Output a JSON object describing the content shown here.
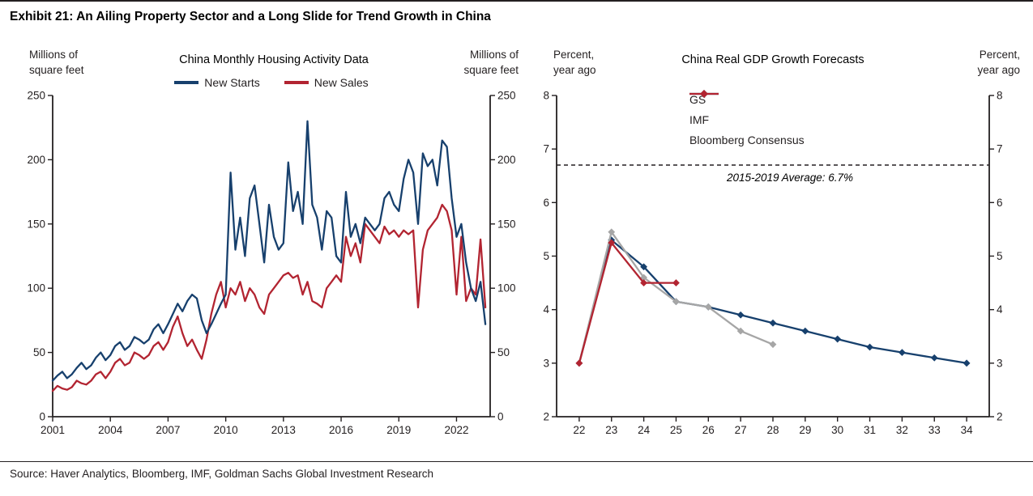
{
  "title": "Exhibit 21: An Ailing Property Sector and a Long Slide for Trend Growth in China",
  "source": "Source: Haver Analytics, Bloomberg, IMF, Goldman Sachs Global Investment Research",
  "colors": {
    "navy": "#17406d",
    "red": "#b22431",
    "gray": "#a6a6a6",
    "ink": "#231f20"
  },
  "chart_data": [
    {
      "type": "line",
      "title": "China Monthly Housing Activity Data",
      "ylabel_left": "Millions of square feet",
      "ylabel_right": "Millions of square feet",
      "ylim": [
        0,
        250
      ],
      "yticks": [
        0,
        50,
        100,
        150,
        200,
        250
      ],
      "xlim": [
        2001,
        2023.75
      ],
      "xticks": [
        2001,
        2004,
        2007,
        2010,
        2013,
        2016,
        2019,
        2022
      ],
      "legend_position": "top",
      "series": [
        {
          "name": "New Sales",
          "color": "#b22431",
          "x_start": 2001,
          "x_step": 0.25,
          "values": [
            20,
            24,
            22,
            21,
            23,
            28,
            26,
            25,
            28,
            33,
            35,
            30,
            35,
            42,
            45,
            40,
            42,
            50,
            48,
            45,
            48,
            55,
            58,
            52,
            58,
            70,
            78,
            65,
            55,
            60,
            52,
            45,
            60,
            80,
            95,
            105,
            85,
            100,
            95,
            105,
            90,
            100,
            95,
            85,
            80,
            95,
            100,
            105,
            110,
            112,
            108,
            110,
            95,
            105,
            90,
            88,
            85,
            100,
            105,
            110,
            105,
            140,
            125,
            135,
            120,
            150,
            145,
            140,
            135,
            148,
            142,
            145,
            140,
            145,
            142,
            145,
            85,
            130,
            145,
            150,
            155,
            165,
            160,
            145,
            95,
            140,
            90,
            100,
            95,
            138,
            85
          ]
        },
        {
          "name": "New Starts",
          "color": "#17406d",
          "x_start": 2001,
          "x_step": 0.25,
          "values": [
            28,
            32,
            35,
            30,
            33,
            38,
            42,
            37,
            40,
            46,
            50,
            44,
            48,
            55,
            58,
            52,
            55,
            62,
            60,
            57,
            60,
            68,
            72,
            65,
            72,
            80,
            88,
            82,
            90,
            95,
            92,
            75,
            65,
            72,
            80,
            88,
            95,
            190,
            130,
            155,
            125,
            170,
            180,
            150,
            120,
            165,
            140,
            130,
            135,
            198,
            160,
            175,
            150,
            230,
            165,
            155,
            130,
            160,
            155,
            125,
            120,
            175,
            140,
            150,
            135,
            155,
            150,
            145,
            150,
            170,
            175,
            165,
            160,
            185,
            200,
            190,
            150,
            205,
            195,
            200,
            180,
            215,
            210,
            170,
            140,
            150,
            120,
            100,
            90,
            105,
            72
          ]
        }
      ],
      "legend_order": [
        "New Starts",
        "New Sales"
      ]
    },
    {
      "type": "line",
      "title": "China Real GDP Growth Forecasts",
      "ylabel_left": "Percent, year ago",
      "ylabel_right": "Percent, year ago",
      "ylim": [
        2,
        8
      ],
      "yticks": [
        2,
        3,
        4,
        5,
        6,
        7,
        8
      ],
      "xlim": [
        21.3,
        34.7
      ],
      "xticks": [
        22,
        23,
        24,
        25,
        26,
        27,
        28,
        29,
        30,
        31,
        32,
        33,
        34
      ],
      "reference_line": {
        "value": 6.7,
        "style": "dashed",
        "label": "2015-2019 Average: 6.7%"
      },
      "legend_position": "top-left-inside",
      "series": [
        {
          "name": "GS",
          "color": "#17406d",
          "marker": "diamond",
          "x": [
            22,
            23,
            24,
            25,
            26,
            27,
            28,
            29,
            30,
            31,
            32,
            33,
            34
          ],
          "values": [
            3.0,
            5.3,
            4.8,
            4.15,
            4.05,
            3.9,
            3.75,
            3.6,
            3.45,
            3.3,
            3.2,
            3.1,
            3.0
          ]
        },
        {
          "name": "IMF",
          "color": "#a6a6a6",
          "marker": "diamond",
          "x": [
            22,
            23,
            24,
            25,
            26,
            27,
            28
          ],
          "values": [
            3.0,
            5.45,
            4.6,
            4.15,
            4.05,
            3.6,
            3.35
          ]
        },
        {
          "name": "Bloomberg Consensus",
          "color": "#b22431",
          "marker": "diamond",
          "x": [
            22,
            23,
            24,
            25
          ],
          "values": [
            3.0,
            5.25,
            4.5,
            4.5
          ]
        }
      ]
    }
  ]
}
